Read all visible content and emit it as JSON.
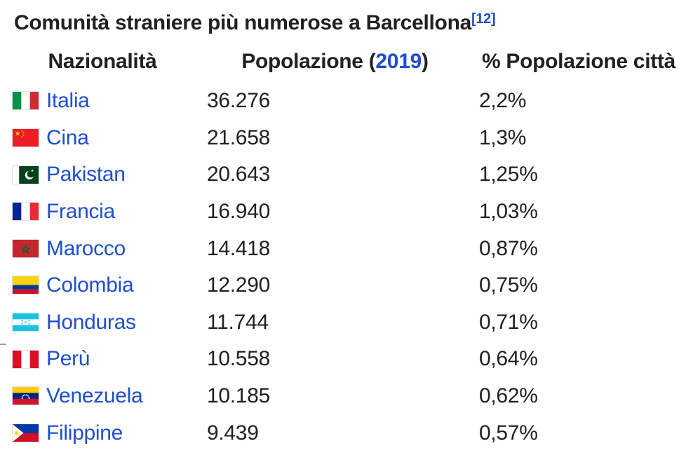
{
  "title": {
    "text": "Comunità straniere più numerose a Barcellona",
    "reference": "[12]"
  },
  "table": {
    "headers": {
      "nationality": "Nazionalità",
      "population_prefix": "Popolazione (",
      "population_year": "2019",
      "population_suffix": ")",
      "percent": "% Popolazione città"
    },
    "rows": [
      {
        "flag": "italy-flag-icon",
        "nationality": "Italia",
        "population": "36.276",
        "percent": "2,2%"
      },
      {
        "flag": "china-flag-icon",
        "nationality": "Cina",
        "population": "21.658",
        "percent": "1,3%"
      },
      {
        "flag": "pakistan-flag-icon",
        "nationality": "Pakistan",
        "population": "20.643",
        "percent": "1,25%"
      },
      {
        "flag": "france-flag-icon",
        "nationality": "Francia",
        "population": "16.940",
        "percent": "1,03%"
      },
      {
        "flag": "morocco-flag-icon",
        "nationality": "Marocco",
        "population": "14.418",
        "percent": "0,87%"
      },
      {
        "flag": "colombia-flag-icon",
        "nationality": "Colombia",
        "population": "12.290",
        "percent": "0,75%"
      },
      {
        "flag": "honduras-flag-icon",
        "nationality": "Honduras",
        "population": "11.744",
        "percent": "0,71%"
      },
      {
        "flag": "peru-flag-icon",
        "nationality": "Perù",
        "population": "10.558",
        "percent": "0,64%"
      },
      {
        "flag": "venezuela-flag-icon",
        "nationality": "Venezuela",
        "population": "10.185",
        "percent": "0,62%"
      },
      {
        "flag": "philippines-flag-icon",
        "nationality": "Filippine",
        "population": "9.439",
        "percent": "0,57%"
      }
    ]
  },
  "colors": {
    "link_blue": "#1f4ed0",
    "text": "#202122"
  }
}
